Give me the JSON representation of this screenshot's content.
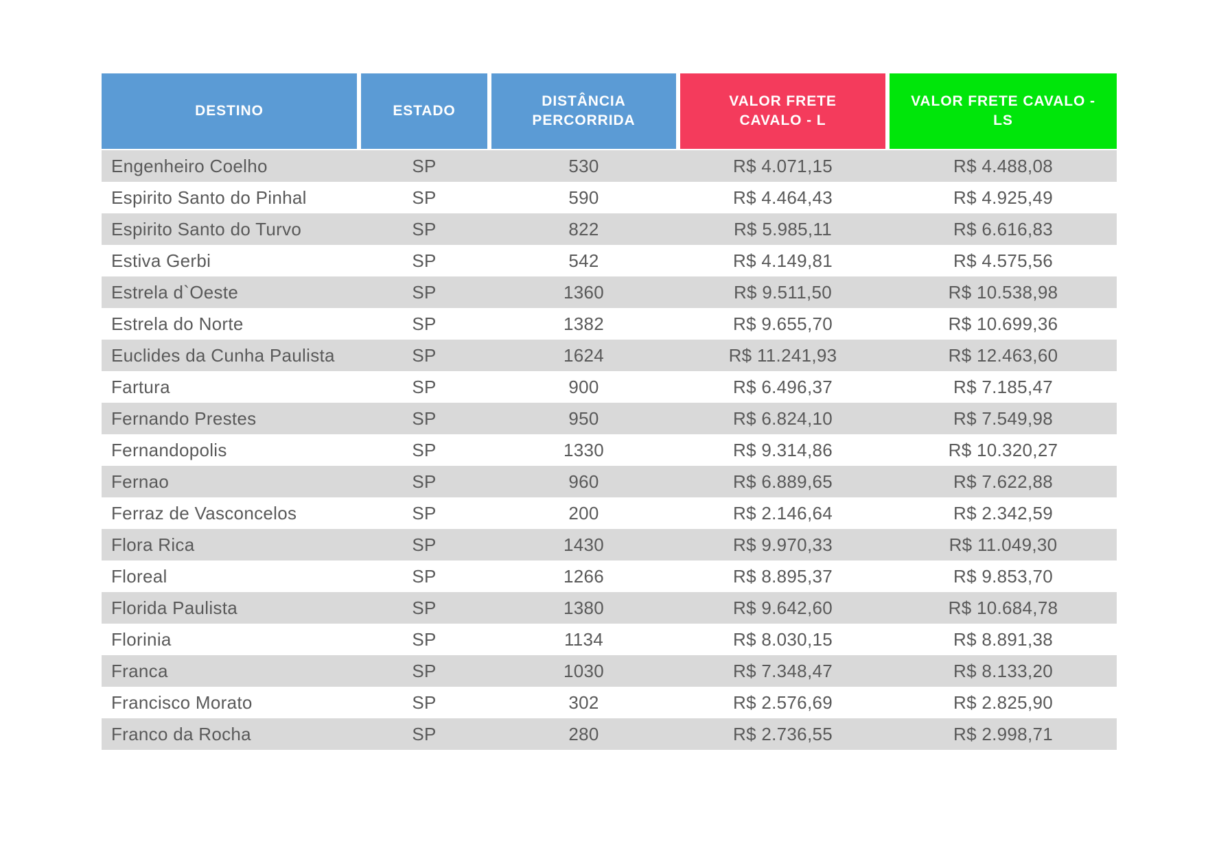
{
  "colors": {
    "header_blue": "#5b9bd5",
    "header_red": "#f43b5c",
    "header_green": "#00e60a",
    "stripe_gray": "#d9d9d9",
    "body_text": "#595959",
    "header_text": "#ffffff"
  },
  "table": {
    "columns": [
      {
        "key": "destino",
        "label": "DESTINO",
        "color": "#5b9bd5"
      },
      {
        "key": "estado",
        "label": "ESTADO",
        "color": "#5b9bd5"
      },
      {
        "key": "distancia",
        "label": "DISTÂNCIA PERCORRIDA",
        "color": "#5b9bd5"
      },
      {
        "key": "valor_l",
        "label": "VALOR FRETE CAVALO - L",
        "color": "#f43b5c"
      },
      {
        "key": "valor_ls",
        "label": "VALOR FRETE CAVALO - LS",
        "color": "#00e60a"
      }
    ],
    "rows": [
      {
        "destino": "Engenheiro Coelho",
        "estado": "SP",
        "distancia": "530",
        "valor_l": "R$ 4.071,15",
        "valor_ls": "R$ 4.488,08"
      },
      {
        "destino": "Espirito Santo do Pinhal",
        "estado": "SP",
        "distancia": "590",
        "valor_l": "R$ 4.464,43",
        "valor_ls": "R$ 4.925,49"
      },
      {
        "destino": "Espirito Santo do Turvo",
        "estado": "SP",
        "distancia": "822",
        "valor_l": "R$ 5.985,11",
        "valor_ls": "R$ 6.616,83"
      },
      {
        "destino": "Estiva Gerbi",
        "estado": "SP",
        "distancia": "542",
        "valor_l": "R$ 4.149,81",
        "valor_ls": "R$ 4.575,56"
      },
      {
        "destino": "Estrela d`Oeste",
        "estado": "SP",
        "distancia": "1360",
        "valor_l": "R$ 9.511,50",
        "valor_ls": "R$ 10.538,98"
      },
      {
        "destino": "Estrela do Norte",
        "estado": "SP",
        "distancia": "1382",
        "valor_l": "R$ 9.655,70",
        "valor_ls": "R$ 10.699,36"
      },
      {
        "destino": "Euclides da Cunha Paulista",
        "estado": "SP",
        "distancia": "1624",
        "valor_l": "R$ 11.241,93",
        "valor_ls": "R$ 12.463,60"
      },
      {
        "destino": "Fartura",
        "estado": "SP",
        "distancia": "900",
        "valor_l": "R$ 6.496,37",
        "valor_ls": "R$ 7.185,47"
      },
      {
        "destino": "Fernando Prestes",
        "estado": "SP",
        "distancia": "950",
        "valor_l": "R$ 6.824,10",
        "valor_ls": "R$ 7.549,98"
      },
      {
        "destino": "Fernandopolis",
        "estado": "SP",
        "distancia": "1330",
        "valor_l": "R$ 9.314,86",
        "valor_ls": "R$ 10.320,27"
      },
      {
        "destino": "Fernao",
        "estado": "SP",
        "distancia": "960",
        "valor_l": "R$ 6.889,65",
        "valor_ls": "R$ 7.622,88"
      },
      {
        "destino": "Ferraz de Vasconcelos",
        "estado": "SP",
        "distancia": "200",
        "valor_l": "R$ 2.146,64",
        "valor_ls": "R$ 2.342,59"
      },
      {
        "destino": "Flora Rica",
        "estado": "SP",
        "distancia": "1430",
        "valor_l": "R$ 9.970,33",
        "valor_ls": "R$ 11.049,30"
      },
      {
        "destino": "Floreal",
        "estado": "SP",
        "distancia": "1266",
        "valor_l": "R$ 8.895,37",
        "valor_ls": "R$ 9.853,70"
      },
      {
        "destino": "Florida Paulista",
        "estado": "SP",
        "distancia": "1380",
        "valor_l": "R$ 9.642,60",
        "valor_ls": "R$ 10.684,78"
      },
      {
        "destino": "Florinia",
        "estado": "SP",
        "distancia": "1134",
        "valor_l": "R$ 8.030,15",
        "valor_ls": "R$ 8.891,38"
      },
      {
        "destino": "Franca",
        "estado": "SP",
        "distancia": "1030",
        "valor_l": "R$ 7.348,47",
        "valor_ls": "R$ 8.133,20"
      },
      {
        "destino": "Francisco Morato",
        "estado": "SP",
        "distancia": "302",
        "valor_l": "R$ 2.576,69",
        "valor_ls": "R$ 2.825,90"
      },
      {
        "destino": "Franco da Rocha",
        "estado": "SP",
        "distancia": "280",
        "valor_l": "R$ 2.736,55",
        "valor_ls": "R$ 2.998,71"
      }
    ]
  }
}
